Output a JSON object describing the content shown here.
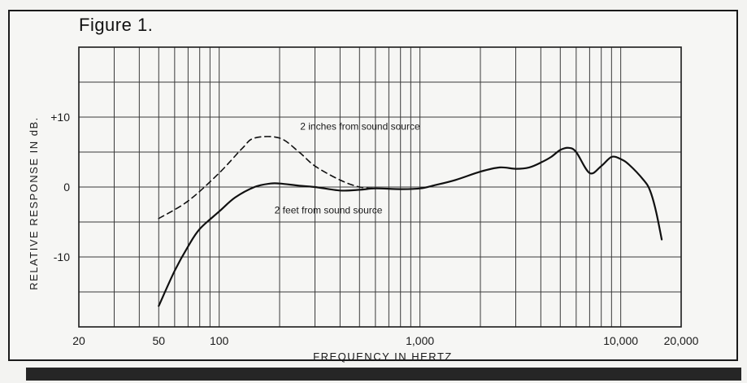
{
  "figure": {
    "title": "Figure 1."
  },
  "chart_data": {
    "type": "line",
    "title": "Figure 1.",
    "xlabel": "FREQUENCY IN HERTZ",
    "ylabel": "RELATIVE RESPONSE IN dB.",
    "x_scale": "log",
    "xlim": [
      20,
      20000
    ],
    "ylim": [
      -20,
      20
    ],
    "grid": true,
    "x_ticks": [
      {
        "value": 20,
        "label": "20"
      },
      {
        "value": 50,
        "label": "50"
      },
      {
        "value": 100,
        "label": "100"
      },
      {
        "value": 1000,
        "label": "1,000"
      },
      {
        "value": 10000,
        "label": "10,000"
      },
      {
        "value": 20000,
        "label": "20,000"
      }
    ],
    "y_ticks": [
      {
        "value": 10,
        "label": "+10"
      },
      {
        "value": 0,
        "label": "0"
      },
      {
        "value": -10,
        "label": "-10"
      }
    ],
    "series": [
      {
        "name": "2 feet from sound source",
        "style": "solid",
        "x": [
          50,
          60,
          70,
          80,
          100,
          120,
          150,
          180,
          200,
          250,
          300,
          400,
          500,
          600,
          800,
          1000,
          1200,
          1500,
          2000,
          2500,
          3000,
          3500,
          4000,
          4500,
          5000,
          5500,
          6000,
          7000,
          8000,
          9000,
          10000,
          11000,
          13000,
          14000,
          15000,
          16000
        ],
        "y": [
          -17,
          -12,
          -8.5,
          -6,
          -3.5,
          -1.5,
          0,
          0.5,
          0.5,
          0.2,
          0,
          -0.5,
          -0.4,
          -0.2,
          -0.3,
          -0.2,
          0.3,
          1.0,
          2.2,
          2.8,
          2.6,
          2.8,
          3.5,
          4.3,
          5.3,
          5.6,
          5.0,
          2.0,
          3.0,
          4.3,
          4.0,
          3.2,
          1.0,
          -0.5,
          -3.5,
          -7.5
        ]
      },
      {
        "name": "2 inches from sound source",
        "style": "dashed",
        "x": [
          50,
          70,
          100,
          130,
          150,
          200,
          250,
          300,
          400,
          500,
          600
        ],
        "y": [
          -4.5,
          -2,
          2,
          5.5,
          7,
          7,
          5,
          3,
          1,
          0,
          -0.2
        ]
      }
    ],
    "annotations": [
      {
        "text": "2 inches from sound source",
        "x": 1000,
        "y": 8.2
      },
      {
        "text": "2 feet from sound source",
        "x": 650,
        "y": -3.8
      }
    ]
  }
}
